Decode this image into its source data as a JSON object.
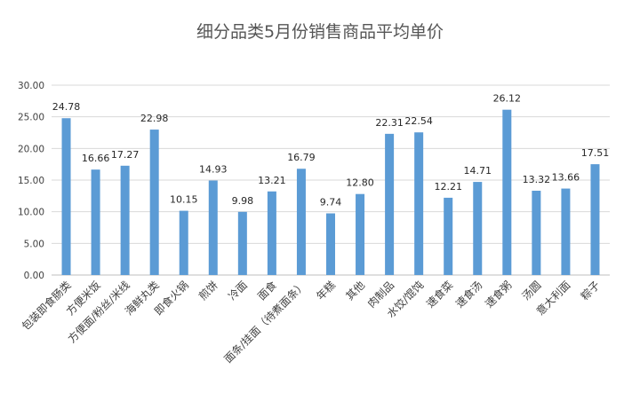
{
  "chart_data": {
    "type": "bar",
    "title": "细分品类5月份销售商品平均单价",
    "categories": [
      "包装即食肠类",
      "方便米饭",
      "方便面/粉丝/米线",
      "海鲜丸类",
      "即食火锅",
      "煎饼",
      "冷面",
      "面食",
      "面条/挂面（待煮面条）",
      "年糕",
      "其他",
      "肉制品",
      "水饺/馄饨",
      "速食菜",
      "速食汤",
      "速食粥",
      "汤圆",
      "意大利面",
      "粽子"
    ],
    "values": [
      24.78,
      16.66,
      17.27,
      22.98,
      10.15,
      14.93,
      9.98,
      13.21,
      16.79,
      9.74,
      12.8,
      22.31,
      22.54,
      12.21,
      14.71,
      26.12,
      13.32,
      13.66,
      17.51
    ],
    "value_labels": [
      "24.78",
      "16.66",
      "17.27",
      "22.98",
      "10.15",
      "14.93",
      "9.98",
      "13.21",
      "16.79",
      "9.74",
      "12.80",
      "22.31",
      "22.54",
      "12.21",
      "14.71",
      "26.12",
      "13.32",
      "13.66",
      "17.51"
    ],
    "yticks": [
      "0.00",
      "5.00",
      "10.00",
      "15.00",
      "20.00",
      "25.00",
      "30.00"
    ],
    "ylim": [
      0,
      30
    ],
    "xlabel": "",
    "ylabel": "",
    "grid": true,
    "legend": false,
    "bar_color": "#5b9bd5"
  }
}
